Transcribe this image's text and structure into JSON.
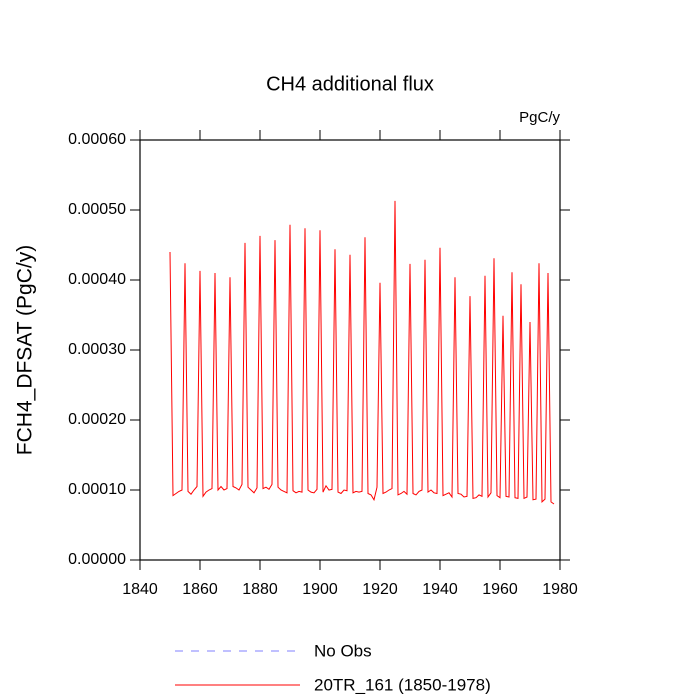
{
  "chart_data": {
    "type": "line",
    "title": "CH4 additional flux",
    "units_label": "PgC/y",
    "y_label": "FCH4_DFSAT  (PgC/y)",
    "xlim": [
      1840,
      1980
    ],
    "xticks": [
      1840,
      1860,
      1880,
      1900,
      1920,
      1940,
      1960,
      1980
    ],
    "ylim": [
      0,
      0.0006
    ],
    "yticks": [
      {
        "value": 0,
        "label": "0.00000"
      },
      {
        "value": 0.0001,
        "label": "0.00010"
      },
      {
        "value": 0.0002,
        "label": "0.00020"
      },
      {
        "value": 0.0003,
        "label": "0.00030"
      },
      {
        "value": 0.0004,
        "label": "0.00040"
      },
      {
        "value": 0.0005,
        "label": "0.00050"
      },
      {
        "value": 0.0006,
        "label": "0.00060"
      }
    ],
    "x": [
      1850,
      1851,
      1852,
      1853,
      1854,
      1855,
      1856,
      1857,
      1858,
      1859,
      1860,
      1861,
      1862,
      1863,
      1864,
      1865,
      1866,
      1867,
      1868,
      1869,
      1870,
      1871,
      1872,
      1873,
      1874,
      1875,
      1876,
      1877,
      1878,
      1879,
      1880,
      1881,
      1882,
      1883,
      1884,
      1885,
      1886,
      1887,
      1888,
      1889,
      1890,
      1891,
      1892,
      1893,
      1894,
      1895,
      1896,
      1897,
      1898,
      1899,
      1900,
      1901,
      1902,
      1903,
      1904,
      1905,
      1906,
      1907,
      1908,
      1909,
      1910,
      1911,
      1912,
      1913,
      1914,
      1915,
      1916,
      1917,
      1918,
      1919,
      1920,
      1921,
      1922,
      1923,
      1924,
      1925,
      1926,
      1927,
      1928,
      1929,
      1930,
      1931,
      1932,
      1933,
      1934,
      1935,
      1936,
      1937,
      1938,
      1939,
      1940,
      1941,
      1942,
      1943,
      1944,
      1945,
      1946,
      1947,
      1948,
      1949,
      1950,
      1951,
      1952,
      1953,
      1954,
      1955,
      1956,
      1957,
      1958,
      1959,
      1960,
      1961,
      1962,
      1963,
      1964,
      1965,
      1966,
      1967,
      1968,
      1969,
      1970,
      1971,
      1972,
      1973,
      1974,
      1975,
      1976,
      1977,
      1978
    ],
    "series": [
      {
        "name": "No Obs",
        "color": "#8080ff",
        "dashed": true,
        "values": [
          null,
          null,
          null,
          null,
          null,
          null,
          null,
          null,
          null,
          null,
          null,
          null,
          null,
          null,
          null,
          null,
          null,
          null,
          null,
          null,
          null,
          null,
          null,
          null,
          null,
          null,
          null,
          null,
          null,
          null,
          null,
          null,
          null,
          null,
          null,
          null,
          null,
          null,
          null,
          null,
          null,
          null,
          null,
          null,
          null,
          null,
          null,
          null,
          null,
          null,
          null,
          null,
          null,
          null,
          null,
          null,
          null,
          null,
          null,
          null,
          null,
          null,
          null,
          null,
          null,
          null,
          null,
          null,
          null,
          null,
          null,
          null,
          null,
          null,
          null,
          null,
          null,
          null,
          null,
          null,
          null,
          null,
          null,
          null,
          null,
          null,
          null,
          null,
          null,
          null,
          null,
          null,
          null,
          null,
          null,
          null,
          null,
          null,
          null,
          null,
          null,
          null,
          null,
          null,
          null,
          null,
          null,
          null,
          null,
          null,
          null,
          null,
          null,
          null,
          null,
          null,
          null,
          null,
          null,
          null,
          null,
          null,
          null,
          null,
          null,
          null,
          null,
          null,
          null
        ]
      },
      {
        "name": "20TR_161 (1850-1978)",
        "color": "#ff0000",
        "dashed": false,
        "values": [
          0.00044,
          9.2e-05,
          9.5e-05,
          9.8e-05,
          0.0001,
          0.000424,
          9.8e-05,
          9.4e-05,
          0.0001,
          0.000105,
          0.000413,
          9.1e-05,
          9.7e-05,
          0.0001,
          0.000102,
          0.00041,
          0.0001,
          0.000105,
          0.0001,
          0.000102,
          0.000404,
          0.000105,
          0.000103,
          0.0001,
          0.000108,
          0.000453,
          0.000104,
          0.0001,
          9.6e-05,
          0.000103,
          0.000463,
          0.000102,
          0.000104,
          0.000101,
          0.000108,
          0.000457,
          0.000104,
          0.0001,
          9.8e-05,
          9.6e-05,
          0.000479,
          9.9e-05,
          9.6e-05,
          9.8e-05,
          9.7e-05,
          0.000474,
          0.0001,
          9.7e-05,
          9.6e-05,
          0.000101,
          0.000471,
          9.7e-05,
          0.000106,
          0.0001,
          0.000101,
          0.000444,
          9.7e-05,
          9.5e-05,
          0.0001,
          9.9e-05,
          0.000436,
          9.6e-05,
          9.8e-05,
          9.7e-05,
          9.8e-05,
          0.000461,
          9.5e-05,
          9.3e-05,
          8.6e-05,
          0.000104,
          0.000396,
          9.5e-05,
          9.7e-05,
          0.0001,
          0.000102,
          0.000513,
          9.3e-05,
          9.5e-05,
          9.8e-05,
          9.4e-05,
          0.000423,
          9.5e-05,
          9.3e-05,
          9.8e-05,
          0.0001,
          0.000429,
          9.7e-05,
          0.0001,
          9.6e-05,
          9.5e-05,
          0.000446,
          9.2e-05,
          9.4e-05,
          9.6e-05,
          9e-05,
          0.000404,
          9.5e-05,
          9.4e-05,
          9e-05,
          9.1e-05,
          0.000377,
          8.8e-05,
          8.9e-05,
          9.3e-05,
          9.1e-05,
          0.000406,
          9e-05,
          9.6e-05,
          0.000431,
          9.2e-05,
          8.9e-05,
          0.000349,
          9.1e-05,
          9e-05,
          0.000411,
          8.9e-05,
          8.8e-05,
          0.000394,
          8.8e-05,
          9e-05,
          0.00034,
          8.6e-05,
          8.7e-05,
          0.000424,
          8.3e-05,
          8.7e-05,
          0.00041,
          8.3e-05,
          8e-05
        ]
      }
    ]
  }
}
